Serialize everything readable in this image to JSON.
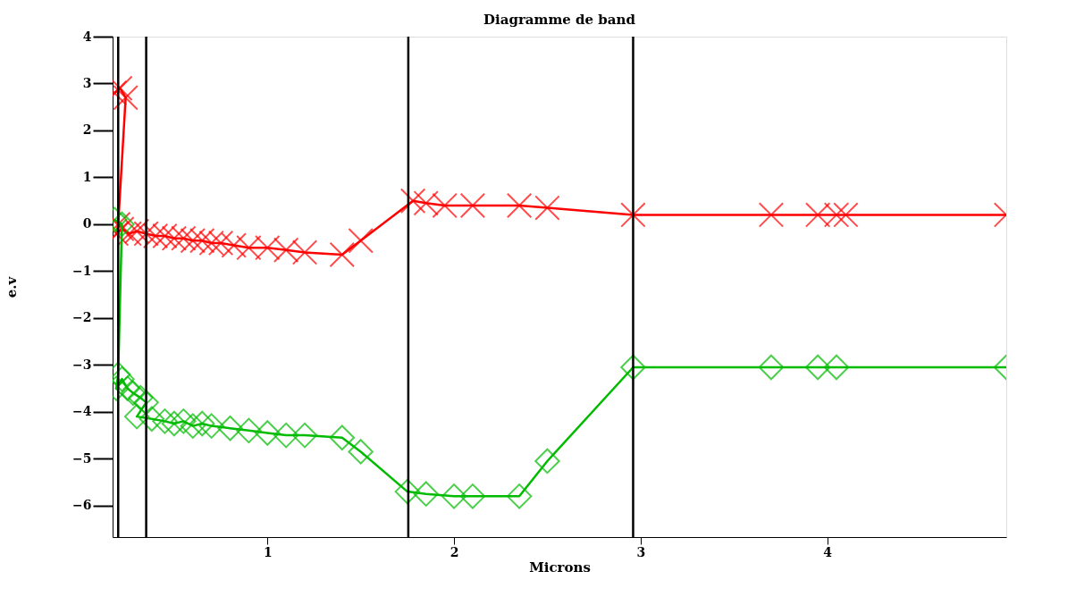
{
  "chart_data": {
    "type": "line",
    "title": "Diagramme de band",
    "xlabel": "Microns",
    "ylabel": "e.v",
    "xlim": [
      0.17,
      4.96
    ],
    "xticks": [
      1,
      2,
      3,
      4
    ],
    "ylim": [
      -6.67,
      4
    ],
    "yticks": [
      -6,
      -5,
      -4,
      -3,
      -2,
      -1,
      0,
      1,
      2,
      3,
      4
    ],
    "grid": false,
    "line_style": "solid",
    "ref_lines": [
      {
        "axis": "x",
        "value": 0.2,
        "color": "#000000"
      },
      {
        "axis": "x",
        "value": 0.35,
        "color": "#000000"
      },
      {
        "axis": "x",
        "value": 1.755,
        "color": "#000000"
      },
      {
        "axis": "x",
        "value": 2.96,
        "color": "#000000"
      }
    ],
    "series": [
      {
        "color": "#ff0000",
        "marker": "cross",
        "x": [
          0.18,
          0.21,
          0.24,
          0.2,
          0.19,
          0.22,
          0.26,
          0.3,
          0.35,
          0.4,
          0.45,
          0.5,
          0.55,
          0.6,
          0.65,
          0.7,
          0.75,
          0.82,
          0.9,
          1.0,
          1.1,
          1.2,
          1.4,
          1.5,
          1.78,
          1.85,
          1.95,
          2.1,
          2.35,
          2.5,
          2.96,
          3.7,
          3.95,
          4.05,
          4.1,
          4.96
        ],
        "values": [
          2.8,
          2.9,
          2.7,
          0.0,
          -0.2,
          -0.1,
          -0.2,
          -0.15,
          -0.2,
          -0.25,
          -0.25,
          -0.3,
          -0.3,
          -0.35,
          -0.35,
          -0.4,
          -0.4,
          -0.45,
          -0.5,
          -0.5,
          -0.55,
          -0.6,
          -0.65,
          -0.35,
          0.5,
          0.45,
          0.4,
          0.4,
          0.4,
          0.35,
          0.2,
          0.2,
          0.2,
          0.2,
          0.2,
          0.2
        ]
      },
      {
        "color": "#00bb00",
        "marker": "diamond",
        "x": [
          0.18,
          0.22,
          0.2,
          0.19,
          0.22,
          0.25,
          0.28,
          0.32,
          0.35,
          0.3,
          0.38,
          0.45,
          0.5,
          0.55,
          0.6,
          0.65,
          0.7,
          0.8,
          0.9,
          1.0,
          1.1,
          1.2,
          1.4,
          1.5,
          1.75,
          1.85,
          2.0,
          2.1,
          2.35,
          2.5,
          2.96,
          3.7,
          3.95,
          4.05,
          4.96
        ],
        "values": [
          0.1,
          0.0,
          -3.2,
          -3.5,
          -3.3,
          -3.5,
          -3.6,
          -3.7,
          -3.8,
          -4.1,
          -4.15,
          -4.2,
          -4.25,
          -4.2,
          -4.3,
          -4.25,
          -4.3,
          -4.35,
          -4.4,
          -4.45,
          -4.5,
          -4.5,
          -4.55,
          -4.85,
          -5.7,
          -5.75,
          -5.8,
          -5.8,
          -5.8,
          -5.05,
          -3.05,
          -3.05,
          -3.05,
          -3.05,
          -3.05
        ]
      }
    ]
  }
}
